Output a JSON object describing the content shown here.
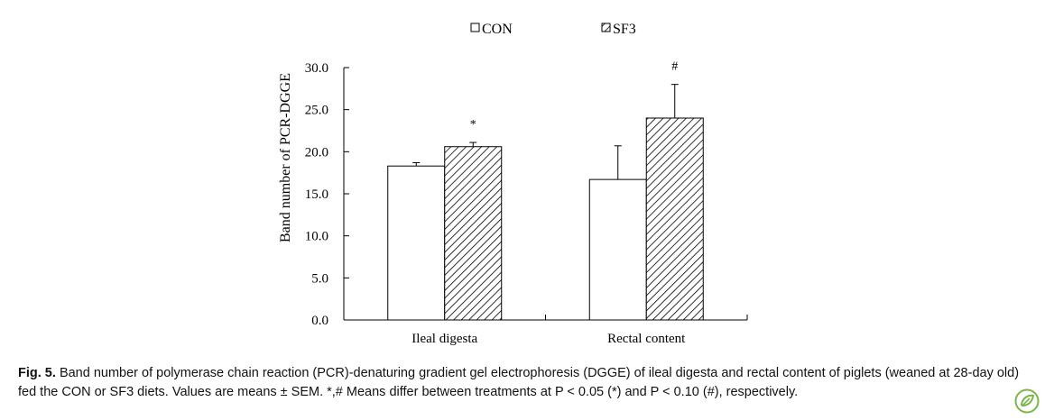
{
  "chart_data": {
    "type": "bar",
    "title": "",
    "xlabel": "",
    "ylabel": "Band number of PCR-DGGE",
    "ylim": [
      0,
      30
    ],
    "yticks": [
      "0.0",
      "5.0",
      "10.0",
      "15.0",
      "20.0",
      "25.0",
      "30.0"
    ],
    "categories": [
      "Ileal digesta",
      "Rectal content"
    ],
    "legend_position": "top",
    "grid": false,
    "series": [
      {
        "name": "CON",
        "fill": "#ffffff",
        "pattern": "none",
        "values": [
          18.3,
          16.7
        ],
        "errors": [
          0.4,
          4.0
        ],
        "significance": [
          "",
          ""
        ]
      },
      {
        "name": "SF3",
        "fill": "#ffffff",
        "pattern": "diagonal-hatch",
        "values": [
          20.6,
          24.0
        ],
        "errors": [
          0.5,
          4.0
        ],
        "significance": [
          "*",
          "#"
        ]
      }
    ]
  },
  "caption": {
    "label": "Fig. 5.",
    "text": "Band number of polymerase chain reaction (PCR)-denaturing gradient gel electrophoresis (DGGE) of ileal digesta and rectal content of piglets (weaned at 28-day old) fed the CON or SF3 diets. Values are means ± SEM. *,# Means differ between treatments at P < 0.05 (*) and P < 0.10 (#), respectively."
  },
  "logo": {
    "icon": "publisher-leaf-icon",
    "color": "#7ab648"
  }
}
